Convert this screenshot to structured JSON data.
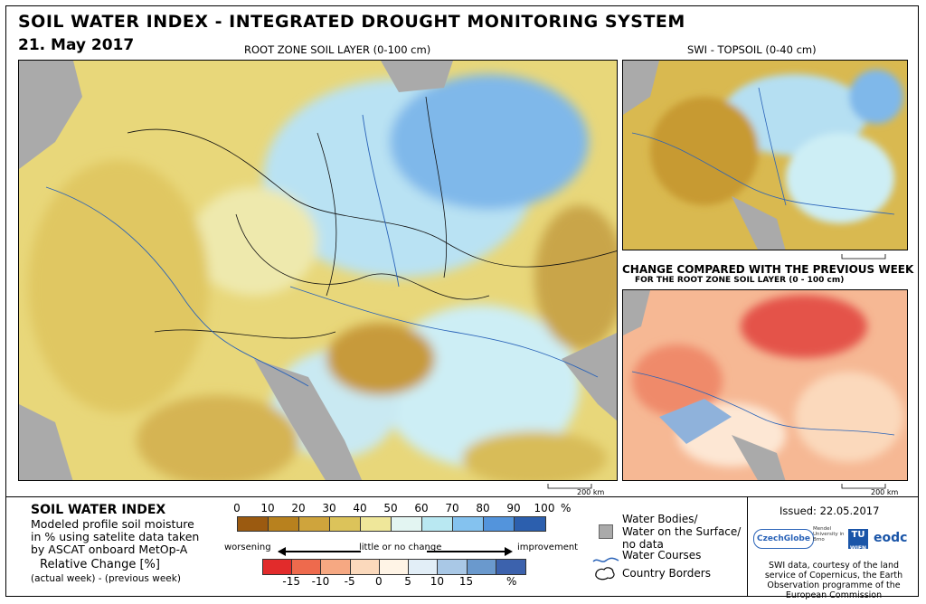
{
  "header": {
    "title": "SOIL WATER INDEX - INTEGRATED DROUGHT MONITORING SYSTEM",
    "date": "21. May 2017"
  },
  "main_map": {
    "label": "ROOT ZONE SOIL LAYER (0-100 cm)"
  },
  "topsoil_map": {
    "label": "SWI - TOPSOIL (0-40 cm)",
    "scale_text": "200 km"
  },
  "change_map": {
    "label": "CHANGE COMPARED WITH THE PREVIOUS WEEK",
    "sublabel": "FOR THE ROOT ZONE SOIL LAYER (0 - 100 cm)",
    "scale_text": "200 km"
  },
  "legend": {
    "title": "SOIL WATER INDEX",
    "desc_lines": [
      "Modeled profile soil moisture",
      "in % using satelite data taken",
      "by ASCAT onboard MetOp-A"
    ],
    "swi_ticks": [
      "0",
      "10",
      "20",
      "30",
      "40",
      "50",
      "60",
      "70",
      "80",
      "90",
      "100"
    ],
    "swi_unit": "%",
    "swi_colors": [
      "#9b5a10",
      "#b8811e",
      "#cfa43c",
      "#dcc35a",
      "#efe79a",
      "#e3f5f2",
      "#b9e8f2",
      "#84c2ef",
      "#5394dc",
      "#2c5fae"
    ],
    "worsening": "worsening",
    "little": "little or no change",
    "improvement": "improvement",
    "rel_title": "Relative Change [%]",
    "rel_sub": "(actual week) - (previous week)",
    "chg_ticks": [
      "-15",
      "-10",
      "-5",
      "0",
      "5",
      "10",
      "15"
    ],
    "chg_unit": "%",
    "chg_colors": [
      "#e22b2b",
      "#ee6a4d",
      "#f6a882",
      "#fbd9bc",
      "#fff4e6",
      "#e2eef7",
      "#a9c8e6",
      "#6a99cd",
      "#3c62ad"
    ],
    "water_bodies": "Water Bodies/",
    "water_surface": "Water on the Surface/",
    "no_data": "no data",
    "water_courses": "Water Courses",
    "borders": "Country Borders"
  },
  "info": {
    "issued": "Issued: 22.05.2017",
    "logo_czechglobe": "CzechGlobe",
    "logo_tu": "TU",
    "logo_tu_sub": "WIEN",
    "logo_eodc": "eodc",
    "logo_mendel": "Mendel University in Brno",
    "credits": "SWI data, courtesy of the land service of Copernicus, the Earth Observation programme of the European Commission"
  }
}
